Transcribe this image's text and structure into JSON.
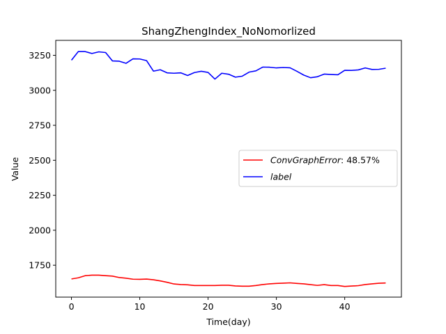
{
  "chart_data": {
    "type": "line",
    "title": "ShangZhengIndex_NoNomorlized",
    "xlabel": "Time(day)",
    "ylabel": "Value",
    "xlim": [
      -2.3,
      48.3
    ],
    "ylim": [
      1522,
      3357
    ],
    "xticks": [
      0,
      10,
      20,
      30,
      40
    ],
    "yticks": [
      1750,
      2000,
      2250,
      2500,
      2750,
      3000,
      3250
    ],
    "grid": false,
    "legend_position": "center-right",
    "x": [
      0,
      1,
      2,
      3,
      4,
      5,
      6,
      7,
      8,
      9,
      10,
      11,
      12,
      13,
      14,
      15,
      16,
      17,
      18,
      19,
      20,
      21,
      22,
      23,
      24,
      25,
      26,
      27,
      28,
      29,
      30,
      31,
      32,
      33,
      34,
      35,
      36,
      37,
      38,
      39,
      40,
      41,
      42,
      43,
      44,
      45,
      46
    ],
    "series": [
      {
        "name": "ConvGraphError: 48.57%",
        "name_italic": "ConvGraphError",
        "name_rest": ": 48.57%",
        "color": "#ff0000",
        "values": [
          1652,
          1660,
          1675,
          1679,
          1679,
          1675,
          1672,
          1662,
          1657,
          1650,
          1649,
          1651,
          1646,
          1638,
          1628,
          1616,
          1612,
          1610,
          1605,
          1605,
          1605,
          1605,
          1607,
          1607,
          1602,
          1600,
          1600,
          1605,
          1612,
          1617,
          1620,
          1622,
          1624,
          1620,
          1617,
          1611,
          1606,
          1611,
          1605,
          1605,
          1598,
          1601,
          1604,
          1612,
          1617,
          1621,
          1623
        ]
      },
      {
        "name": "label",
        "name_italic": "label",
        "name_rest": "",
        "color": "#0000ff",
        "values": [
          3215,
          3277,
          3277,
          3263,
          3275,
          3270,
          3210,
          3208,
          3193,
          3225,
          3224,
          3212,
          3137,
          3147,
          3125,
          3122,
          3125,
          3106,
          3127,
          3136,
          3128,
          3080,
          3122,
          3115,
          3094,
          3101,
          3130,
          3139,
          3166,
          3165,
          3160,
          3163,
          3161,
          3136,
          3109,
          3090,
          3097,
          3116,
          3113,
          3111,
          3143,
          3142,
          3146,
          3160,
          3149,
          3150,
          3158
        ]
      }
    ]
  }
}
